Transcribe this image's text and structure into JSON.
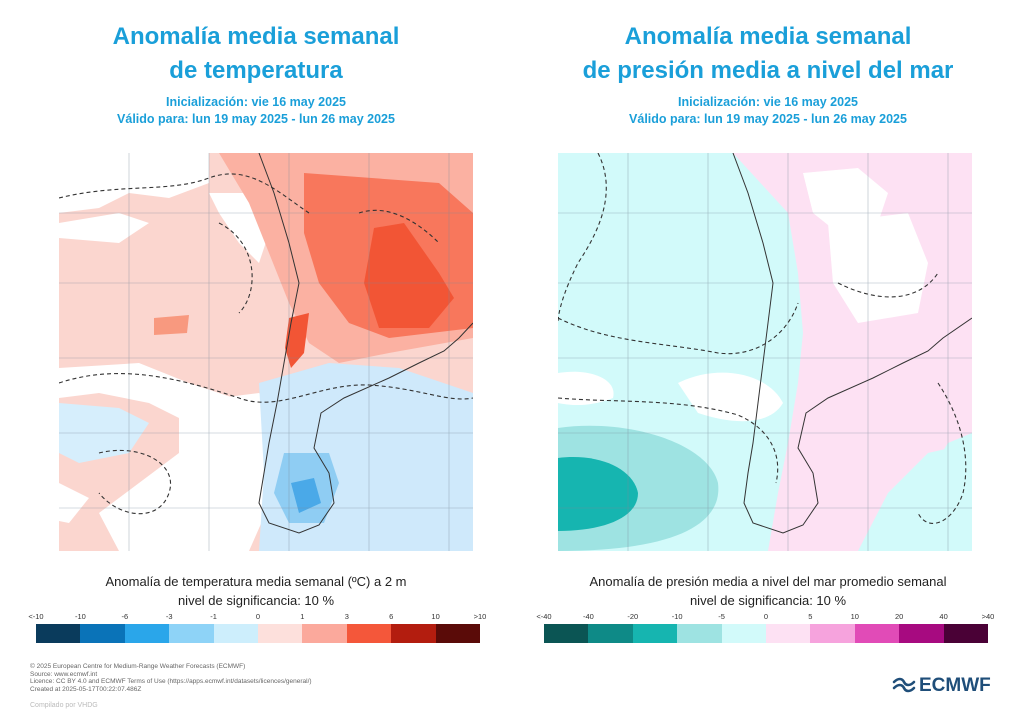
{
  "left": {
    "title_line1": "Anomalía media semanal",
    "title_line2": "de temperatura",
    "init": "Inicialización: vie 16 may 2025",
    "valid": "Válido para: lun 19 may 2025 - lun 26 may 2025",
    "caption_line1": "Anomalía de temperatura media semanal (ºC) a 2 m",
    "caption_line2": "nivel de significancia: 10 %",
    "legend": {
      "labels": [
        "<-10",
        "-10",
        "-6",
        "-3",
        "-1",
        "0",
        "1",
        "3",
        "6",
        "10",
        ">10"
      ],
      "colors": [
        "#0a3b5c",
        "#0a73b8",
        "#2aa6ea",
        "#8ed3f7",
        "#cdeefc",
        "#fde0dc",
        "#fba99c",
        "#f4573a",
        "#b31d0f",
        "#5a0b08"
      ]
    }
  },
  "right": {
    "title_line1": "Anomalía media semanal",
    "title_line2": "de presión media a nivel del mar",
    "init": "Inicialización: vie 16 may 2025",
    "valid": "Válido para: lun 19 may 2025 - lun 26 may 2025",
    "caption_line1": "Anomalía de presión media a nivel del mar promedio semanal",
    "caption_line2": "nivel de significancia: 10 %",
    "legend": {
      "labels": [
        "<-40",
        "-40",
        "-20",
        "-10",
        "-5",
        "0",
        "5",
        "10",
        "20",
        "40",
        ">40"
      ],
      "colors": [
        "#0b5554",
        "#0e8a87",
        "#16b5b0",
        "#9ee3e2",
        "#d2fafa",
        "#fde1f3",
        "#f6a3dd",
        "#e14bb7",
        "#a70a80",
        "#4a0136"
      ]
    }
  },
  "footer": {
    "line1": "© 2025 European Centre for Medium-Range Weather Forecasts (ECMWF)",
    "line2": "Source: www.ecmwf.int",
    "line3": "Licence: CC BY 4.0 and ECMWF Terms of Use (https://apps.ecmwf.int/datasets/licences/general/)",
    "line4": "Created at 2025-05-17T00:22:07.486Z",
    "compiled": "Compilado por VHDG"
  },
  "logo": {
    "text": "ECMWF",
    "color": "#1f4e79"
  }
}
